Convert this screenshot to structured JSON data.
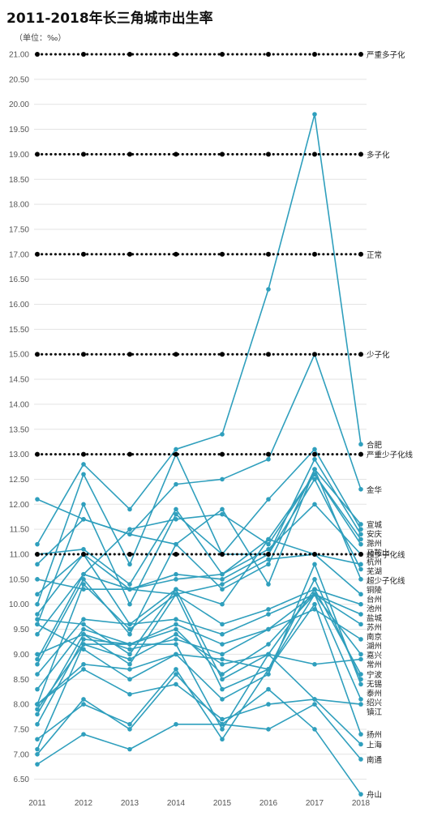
{
  "title": "2011-2018年长三角城市出生率",
  "unit": "（单位：‰）",
  "chart_data": {
    "type": "line",
    "x": [
      "2011",
      "2012",
      "2013",
      "2014",
      "2015",
      "2016",
      "2017",
      "2018"
    ],
    "ylim": [
      6.3,
      21.1
    ],
    "yticks": [
      "6.50",
      "7.00",
      "7.50",
      "8.00",
      "8.50",
      "9.00",
      "9.50",
      "10.00",
      "10.50",
      "11.00",
      "11.50",
      "12.00",
      "12.50",
      "13.00",
      "13.50",
      "14.00",
      "14.50",
      "15.00",
      "15.50",
      "16.00",
      "16.50",
      "17.00",
      "17.50",
      "18.00",
      "18.50",
      "19.00",
      "19.50",
      "20.00",
      "20.50",
      "21.00"
    ],
    "grid": true,
    "line_color": "#2f9fbd",
    "reference_lines": [
      {
        "name": "严重多子化",
        "value": 21.0
      },
      {
        "name": "多子化",
        "value": 19.0
      },
      {
        "name": "正常",
        "value": 17.0
      },
      {
        "name": "少子化",
        "value": 15.0
      },
      {
        "name": "严重少子化线",
        "value": 13.0
      },
      {
        "name": "超少子化线",
        "value": 11.0
      }
    ],
    "reference_color": "#000000",
    "series": [
      {
        "name": "合肥",
        "values": [
          11.2,
          12.8,
          11.9,
          13.1,
          13.4,
          16.3,
          19.8,
          13.2
        ]
      },
      {
        "name": "金华",
        "values": [
          10.8,
          11.7,
          11.4,
          12.4,
          12.5,
          12.9,
          15.0,
          12.3
        ]
      },
      {
        "name": "宣城",
        "values": [
          12.1,
          11.7,
          11.4,
          11.2,
          11.9,
          10.4,
          12.7,
          11.6
        ]
      },
      {
        "name": "安庆",
        "values": [
          10.0,
          12.6,
          10.8,
          13.0,
          11.0,
          12.1,
          13.1,
          11.5
        ]
      },
      {
        "name": "滁州",
        "values": [
          9.6,
          12.0,
          10.0,
          11.8,
          11.0,
          11.0,
          12.9,
          11.4
        ]
      },
      {
        "name": "马鞍山",
        "values": [
          11.0,
          11.1,
          10.4,
          11.9,
          10.6,
          11.3,
          12.6,
          11.3
        ]
      },
      {
        "name": "杭州",
        "values": [
          9.4,
          10.6,
          11.5,
          11.7,
          11.8,
          11.2,
          12.6,
          11.2
        ]
      },
      {
        "name": "芜湖",
        "values": [
          10.5,
          10.3,
          10.3,
          10.5,
          10.6,
          11.1,
          12.0,
          11.0
        ]
      },
      {
        "name": "超少子化线",
        "values": [
          8.9,
          10.6,
          10.3,
          10.2,
          10.4,
          10.9,
          11.0,
          10.8
        ]
      },
      {
        "name": "铜陵",
        "values": [
          10.2,
          11.0,
          10.3,
          10.6,
          10.5,
          11.0,
          12.5,
          10.7
        ]
      },
      {
        "name": "台州",
        "values": [
          8.8,
          10.5,
          9.4,
          11.2,
          10.3,
          10.8,
          12.7,
          10.5
        ]
      },
      {
        "name": "池州",
        "values": [
          9.8,
          11.0,
          9.6,
          10.3,
          10.0,
          11.3,
          11.0,
          10.2
        ]
      },
      {
        "name": "盐城",
        "values": [
          8.0,
          10.4,
          9.5,
          10.2,
          9.6,
          9.9,
          10.3,
          10.0
        ]
      },
      {
        "name": "苏州",
        "values": [
          8.6,
          9.7,
          9.6,
          9.7,
          9.4,
          9.8,
          10.2,
          9.8
        ]
      },
      {
        "name": "南京",
        "values": [
          8.3,
          9.5,
          9.2,
          9.6,
          9.2,
          9.5,
          10.2,
          9.6
        ]
      },
      {
        "name": "湖州",
        "values": [
          7.8,
          9.4,
          9.1,
          9.3,
          9.0,
          9.5,
          9.9,
          9.3
        ]
      },
      {
        "name": "嘉兴",
        "values": [
          7.6,
          9.3,
          9.2,
          9.5,
          8.6,
          9.2,
          10.2,
          9.0
        ]
      },
      {
        "name": "常州",
        "values": [
          7.9,
          9.2,
          8.9,
          9.4,
          8.8,
          9.0,
          8.8,
          8.9
        ]
      },
      {
        "name": "宁波",
        "values": [
          9.7,
          9.6,
          9.0,
          10.3,
          8.5,
          9.0,
          10.3,
          8.6
        ]
      },
      {
        "name": "无锡",
        "values": [
          9.0,
          9.4,
          8.8,
          10.2,
          8.3,
          8.7,
          10.5,
          8.5
        ]
      },
      {
        "name": "泰州",
        "values": [
          9.6,
          9.1,
          8.5,
          9.0,
          8.1,
          8.6,
          10.8,
          8.4
        ]
      },
      {
        "name": "绍兴",
        "values": [
          8.0,
          8.8,
          8.7,
          9.0,
          8.9,
          8.7,
          10.2,
          8.1
        ]
      },
      {
        "name": "镇江",
        "values": [
          8.0,
          8.7,
          8.2,
          8.4,
          7.7,
          8.0,
          8.1,
          8.0
        ]
      },
      {
        "name": "扬州",
        "values": [
          7.3,
          8.0,
          7.6,
          8.7,
          7.3,
          8.7,
          10.0,
          7.4
        ]
      },
      {
        "name": "上海",
        "values": [
          7.1,
          9.2,
          9.2,
          9.2,
          7.5,
          9.0,
          8.1,
          7.2
        ]
      },
      {
        "name": "南通",
        "values": [
          6.8,
          7.4,
          7.1,
          7.6,
          7.6,
          7.5,
          8.0,
          6.9
        ]
      },
      {
        "name": "舟山",
        "values": [
          7.0,
          8.1,
          7.5,
          8.6,
          7.6,
          8.3,
          7.5,
          6.2
        ]
      }
    ]
  }
}
